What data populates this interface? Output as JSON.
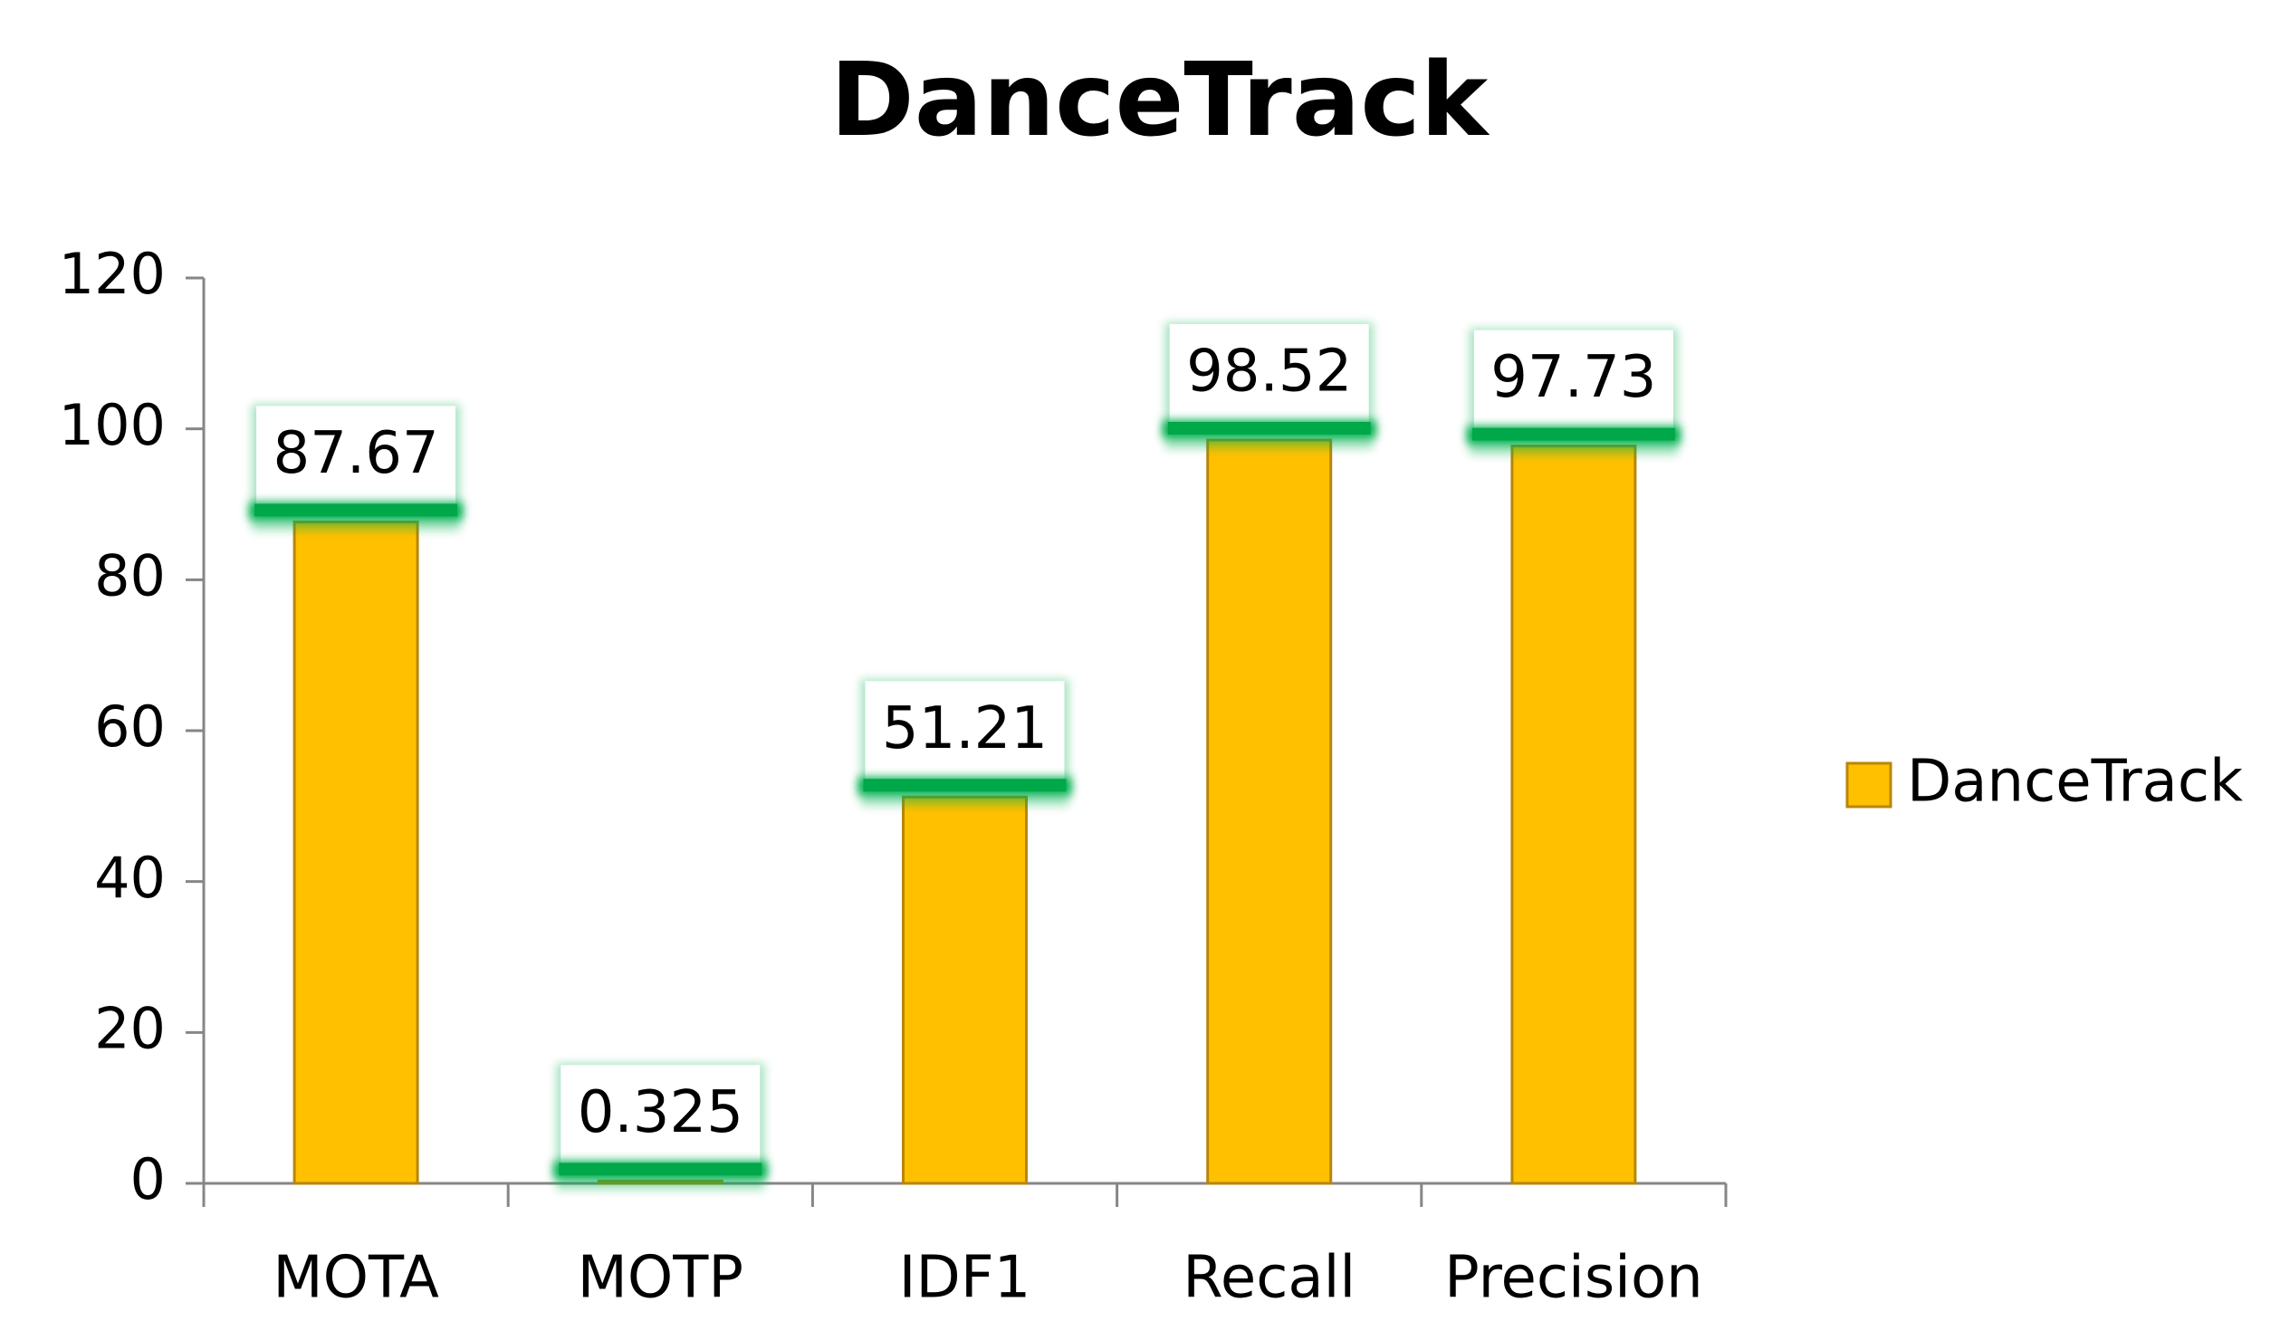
{
  "chart_data": {
    "type": "bar",
    "title": "DanceTrack",
    "categories": [
      "MOTA",
      "MOTP",
      "IDF1",
      "Recall",
      "Precision"
    ],
    "series": [
      {
        "name": "DanceTrack",
        "color": "#ffc000",
        "values": [
          87.67,
          0.325,
          51.21,
          98.52,
          97.73
        ]
      }
    ],
    "ylim": [
      0,
      120
    ],
    "yticks": [
      0,
      20,
      40,
      60,
      80,
      100,
      120
    ],
    "grid": false,
    "legend": "right"
  }
}
